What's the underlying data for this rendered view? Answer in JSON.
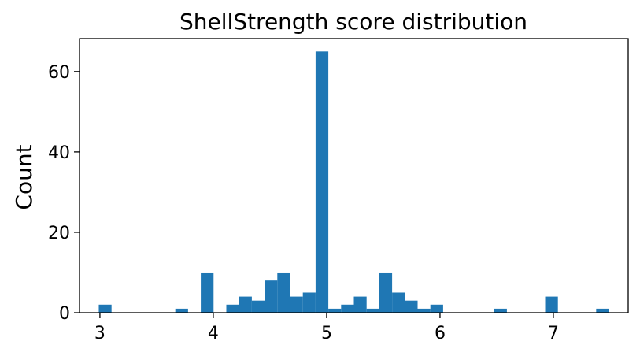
{
  "chart_data": {
    "type": "bar",
    "title": "ShellStrength score distribution",
    "xlabel": "",
    "ylabel": "Count",
    "bin_width": 0.1125,
    "bin_starts": [
      2.99,
      3.1025,
      3.215,
      3.3275,
      3.44,
      3.5525,
      3.665,
      3.7775,
      3.89,
      4.0025,
      4.115,
      4.2275,
      4.34,
      4.4525,
      4.565,
      4.6775,
      4.79,
      4.9025,
      5.015,
      5.1275,
      5.24,
      5.3525,
      5.465,
      5.5775,
      5.69,
      5.8025,
      5.915,
      6.0275,
      6.14,
      6.2525,
      6.365,
      6.4775,
      6.59,
      6.7025,
      6.815,
      6.9275,
      7.04,
      7.1525,
      7.265,
      7.3775
    ],
    "values": [
      2,
      0,
      0,
      0,
      0,
      0,
      1,
      0,
      10,
      0,
      2,
      4,
      3,
      8,
      10,
      4,
      5,
      65,
      1,
      2,
      4,
      1,
      10,
      5,
      3,
      1,
      2,
      0,
      0,
      0,
      0,
      1,
      0,
      0,
      0,
      4,
      0,
      0,
      0,
      1
    ],
    "xlim": [
      2.82,
      7.66
    ],
    "ylim": [
      0,
      68.2
    ],
    "xticks": [
      "3",
      "4",
      "5",
      "6",
      "7"
    ],
    "yticks": [
      "0",
      "20",
      "40",
      "60"
    ],
    "bar_color": "#1f77b4",
    "grid": false,
    "legend": "none"
  }
}
